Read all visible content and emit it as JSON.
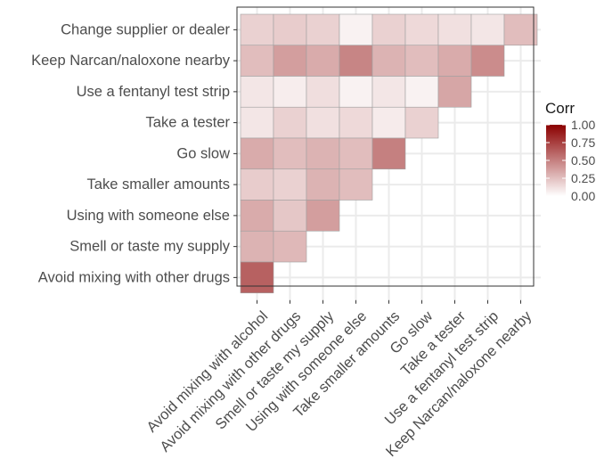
{
  "chart_data": {
    "type": "heatmap",
    "title": "",
    "xlabel": "",
    "ylabel": "",
    "x_categories": [
      "Avoid mixing with alcohol",
      "Avoid mixing with other drugs",
      "Smell or taste my supply",
      "Using with someone else",
      "Take smaller amounts",
      "Go slow",
      "Take a tester",
      "Use a fentanyl test strip",
      "Keep Narcan/naloxone nearby"
    ],
    "y_categories": [
      "Change supplier or dealer",
      "Keep Narcan/naloxone nearby",
      "Use a fentanyl test strip",
      "Take a tester",
      "Go slow",
      "Take smaller amounts",
      "Using with someone else",
      "Smell or taste my supply",
      "Avoid mixing with other drugs"
    ],
    "values": [
      [
        0.18,
        0.2,
        0.18,
        0.05,
        0.18,
        0.15,
        0.12,
        0.1,
        0.26
      ],
      [
        0.26,
        0.38,
        0.33,
        0.48,
        0.3,
        0.26,
        0.33,
        0.45,
        null
      ],
      [
        0.1,
        0.07,
        0.13,
        0.05,
        0.1,
        0.05,
        0.35,
        null,
        null
      ],
      [
        0.1,
        0.18,
        0.12,
        0.15,
        0.08,
        0.18,
        null,
        null,
        null
      ],
      [
        0.33,
        0.26,
        0.3,
        0.26,
        0.5,
        null,
        null,
        null,
        null
      ],
      [
        0.2,
        0.18,
        0.3,
        0.26,
        null,
        null,
        null,
        null,
        null
      ],
      [
        0.33,
        0.22,
        0.38,
        null,
        null,
        null,
        null,
        null,
        null
      ],
      [
        0.3,
        0.28,
        null,
        null,
        null,
        null,
        null,
        null,
        null
      ],
      [
        0.62,
        null,
        null,
        null,
        null,
        null,
        null,
        null,
        null
      ]
    ],
    "color_scale": {
      "low": "#ffffff",
      "high": "#8b0000",
      "range": [
        0,
        1
      ]
    },
    "legend": {
      "title": "Corr",
      "position": "right",
      "ticks": [
        "1.00",
        "0.75",
        "0.50",
        "0.25",
        "0.00"
      ]
    },
    "grid": true,
    "panel_background": "#ffffff",
    "grid_color": "#ebebeb",
    "panel_border": "#333333",
    "tile_border": "#a0a0a0"
  }
}
